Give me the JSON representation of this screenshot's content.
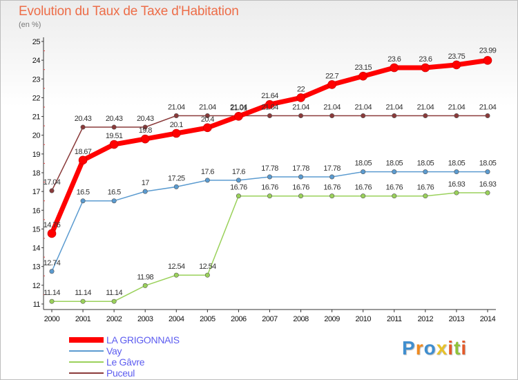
{
  "title": "Evolution du Taux de Taxe d'Habitation",
  "subtitle": "(en %)",
  "brand": {
    "name": "Proxiti",
    "letter_colors": [
      "#3f8ecf",
      "#ef8a1f",
      "#3f8ecf",
      "#e8c22a",
      "#e35a2a",
      "#8fc23a",
      "#e35a2a"
    ]
  },
  "chart_data": {
    "type": "line",
    "title": "Evolution du Taux de Taxe d'Habitation",
    "ylabel": "(en %)",
    "xlabel": "",
    "x": [
      "2000",
      "2001",
      "2002",
      "2003",
      "2004",
      "2005",
      "2006",
      "2007",
      "2008",
      "2009",
      "2010",
      "2011",
      "2012",
      "2013",
      "2014"
    ],
    "ylim": [
      11,
      25
    ],
    "yticks": [
      "11",
      "12",
      "13",
      "14",
      "15",
      "16",
      "17",
      "18",
      "19",
      "20",
      "21",
      "22",
      "23",
      "24",
      "25"
    ],
    "grid": false,
    "legend_position": "bottom-left",
    "series": [
      {
        "name": "LA GRIGONNAIS",
        "color": "#ff0000",
        "values": [
          14.76,
          18.67,
          19.51,
          19.8,
          20.1,
          20.4,
          21.01,
          21.64,
          22,
          22.7,
          23.15,
          23.6,
          23.6,
          23.75,
          23.99
        ],
        "labels": [
          "14.76",
          "18.67",
          "19.51",
          "19.8",
          "20.1",
          "20.4",
          "21.01",
          "21.64",
          "22",
          "22.7",
          "23.15",
          "23.6",
          "23.6",
          "23.75",
          "23.99"
        ]
      },
      {
        "name": "Vay",
        "color": "#5b9bd0",
        "values": [
          12.74,
          16.5,
          16.5,
          17,
          17.25,
          17.6,
          17.6,
          17.78,
          17.78,
          17.78,
          18.05,
          18.05,
          18.05,
          18.05,
          18.05
        ],
        "labels": [
          "12.74",
          "16.5",
          "16.5",
          "17",
          "17.25",
          "17.6",
          "17.6",
          "17.78",
          "17.78",
          "17.78",
          "18.05",
          "18.05",
          "18.05",
          "18.05",
          "18.05"
        ]
      },
      {
        "name": "Le Gâvre",
        "color": "#9ad15a",
        "values": [
          11.14,
          11.14,
          11.14,
          11.98,
          12.54,
          12.54,
          16.76,
          16.76,
          16.76,
          16.76,
          16.76,
          16.76,
          16.76,
          16.93,
          16.93
        ],
        "labels": [
          "11.14",
          "11.14",
          "11.14",
          "11.98",
          "12.54",
          "12.54",
          "16.76",
          "16.76",
          "16.76",
          "16.76",
          "16.76",
          "16.76",
          "16.76",
          "16.93",
          "16.93"
        ]
      },
      {
        "name": "Puceul",
        "color": "#8a3a3a",
        "values": [
          17.04,
          20.43,
          20.43,
          20.43,
          21.04,
          21.04,
          21.04,
          21.04,
          21.04,
          21.04,
          21.04,
          21.04,
          21.04,
          21.04,
          21.04
        ],
        "labels": [
          "17.04",
          "20.43",
          "20.43",
          "20.43",
          "21.04",
          "21.04",
          "21.04",
          "21.04",
          "21.04",
          "21.04",
          "21.04",
          "21.04",
          "21.04",
          "21.04",
          "21.04"
        ]
      }
    ]
  }
}
